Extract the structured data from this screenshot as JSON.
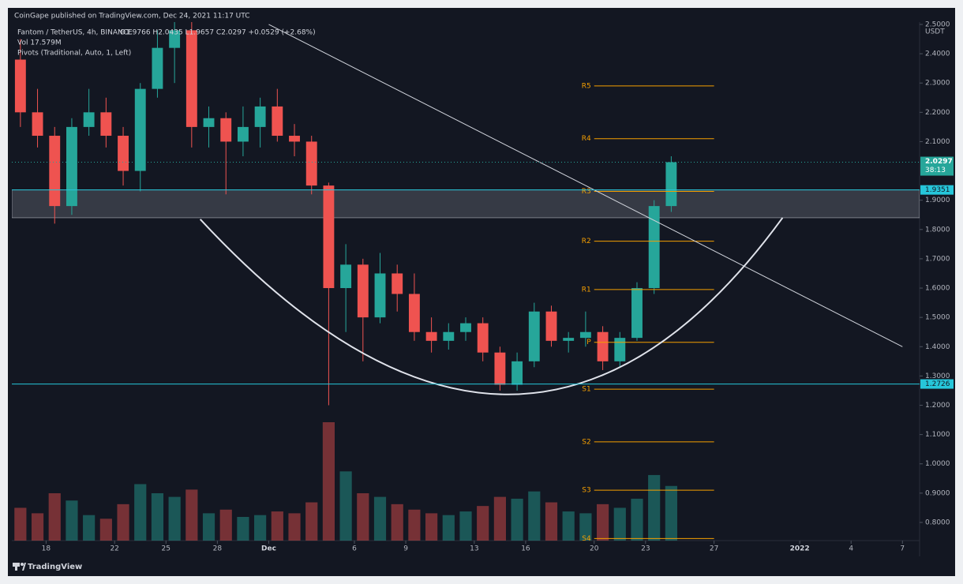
{
  "header": "CoinGape published on TradingView.com, Dec 24, 2021 11:17 UTC",
  "footer": "TradingView",
  "chart_data": {
    "type": "candlestick",
    "legend": {
      "symbol": "Fantom / TetherUS, 4h, BINANCE",
      "ohlc": "O1.9766 H2.0435 L1.9657 C2.0297 +0.0529 (+2.68%)",
      "volume": "Vol 17.579M",
      "pivots": "Pivots (Traditional, Auto, 1, Left)"
    },
    "currency": "USDT",
    "x": [
      "2021-11-16",
      "2021-11-17",
      "2021-11-18",
      "2021-11-19",
      "2021-11-20",
      "2021-11-21",
      "2021-11-22",
      "2021-11-23",
      "2021-11-24",
      "2021-11-25",
      "2021-11-26",
      "2021-11-27",
      "2021-11-28",
      "2021-11-29",
      "2021-11-30",
      "2021-12-01",
      "2021-12-02",
      "2021-12-03",
      "2021-12-04",
      "2021-12-05",
      "2021-12-06",
      "2021-12-07",
      "2021-12-08",
      "2021-12-09",
      "2021-12-10",
      "2021-12-11",
      "2021-12-12",
      "2021-12-13",
      "2021-12-14",
      "2021-12-15",
      "2021-12-16",
      "2021-12-17",
      "2021-12-18",
      "2021-12-19",
      "2021-12-20",
      "2021-12-21",
      "2021-12-22",
      "2021-12-23",
      "2021-12-24"
    ],
    "open": [
      2.38,
      2.2,
      2.12,
      1.88,
      2.15,
      2.2,
      2.12,
      2.0,
      2.28,
      2.42,
      2.48,
      2.15,
      2.18,
      2.1,
      2.15,
      2.22,
      2.12,
      2.1,
      1.95,
      1.6,
      1.68,
      1.5,
      1.65,
      1.58,
      1.45,
      1.42,
      1.45,
      1.48,
      1.38,
      1.27,
      1.35,
      1.52,
      1.42,
      1.43,
      1.45,
      1.35,
      1.43,
      1.6,
      1.88
    ],
    "high": [
      2.45,
      2.28,
      2.15,
      2.18,
      2.28,
      2.25,
      2.15,
      2.3,
      2.48,
      2.55,
      2.52,
      2.22,
      2.2,
      2.22,
      2.25,
      2.28,
      2.16,
      2.12,
      1.96,
      1.75,
      1.7,
      1.72,
      1.68,
      1.65,
      1.5,
      1.48,
      1.5,
      1.5,
      1.4,
      1.38,
      1.55,
      1.54,
      1.45,
      1.52,
      1.47,
      1.45,
      1.62,
      1.9,
      2.05
    ],
    "low": [
      2.15,
      2.08,
      1.82,
      1.85,
      2.12,
      2.08,
      1.95,
      1.93,
      2.25,
      2.3,
      2.08,
      2.08,
      1.92,
      2.05,
      2.08,
      2.1,
      2.05,
      1.92,
      1.2,
      1.45,
      1.35,
      1.48,
      1.52,
      1.42,
      1.38,
      1.39,
      1.42,
      1.35,
      1.25,
      1.25,
      1.33,
      1.4,
      1.38,
      1.4,
      1.32,
      1.33,
      1.42,
      1.58,
      1.86
    ],
    "close": [
      2.2,
      2.12,
      1.88,
      2.15,
      2.2,
      2.12,
      2.0,
      2.28,
      2.42,
      2.48,
      2.15,
      2.18,
      2.1,
      2.15,
      2.22,
      2.12,
      2.1,
      1.95,
      1.6,
      1.68,
      1.5,
      1.65,
      1.58,
      1.45,
      1.42,
      1.45,
      1.48,
      1.38,
      1.27,
      1.35,
      1.52,
      1.42,
      1.43,
      1.45,
      1.35,
      1.43,
      1.6,
      1.88,
      2.0297
    ],
    "volume": [
      180,
      150,
      260,
      220,
      140,
      120,
      200,
      310,
      260,
      240,
      280,
      150,
      170,
      130,
      140,
      160,
      150,
      210,
      650,
      380,
      260,
      240,
      200,
      170,
      150,
      140,
      160,
      190,
      240,
      230,
      270,
      210,
      160,
      150,
      200,
      180,
      230,
      360,
      300
    ],
    "up_color": "#26a69a",
    "down_color": "#ef5350",
    "ylim": [
      0.738,
      2.508
    ],
    "yticks": [
      {
        "value": 2.5,
        "label": "2.5000"
      },
      {
        "value": 2.4,
        "label": "2.4000"
      },
      {
        "value": 2.3,
        "label": "2.3000"
      },
      {
        "value": 2.2,
        "label": "2.2000"
      },
      {
        "value": 2.1,
        "label": "2.1000"
      },
      {
        "value": 1.9,
        "label": "1.9000"
      },
      {
        "value": 1.8,
        "label": "1.8000"
      },
      {
        "value": 1.7,
        "label": "1.7000"
      },
      {
        "value": 1.6,
        "label": "1.6000"
      },
      {
        "value": 1.5,
        "label": "1.5000"
      },
      {
        "value": 1.4,
        "label": "1.4000"
      },
      {
        "value": 1.3,
        "label": "1.3000"
      },
      {
        "value": 1.2,
        "label": "1.2000"
      },
      {
        "value": 1.1,
        "label": "1.1000"
      },
      {
        "value": 1.0,
        "label": "1.0000"
      },
      {
        "value": 0.9,
        "label": "0.9000"
      },
      {
        "value": 0.8,
        "label": "0.8000"
      }
    ],
    "xlim": [
      "2021-11-16",
      "2022-01-08"
    ],
    "xticks": [
      {
        "value": "2021-11-18",
        "label": "18"
      },
      {
        "value": "2021-11-22",
        "label": "22"
      },
      {
        "value": "2021-11-25",
        "label": "25"
      },
      {
        "value": "2021-11-28",
        "label": "28"
      },
      {
        "value": "2021-12-01",
        "label": "Dec"
      },
      {
        "value": "2021-12-06",
        "label": "6"
      },
      {
        "value": "2021-12-09",
        "label": "9"
      },
      {
        "value": "2021-12-13",
        "label": "13"
      },
      {
        "value": "2021-12-16",
        "label": "16"
      },
      {
        "value": "2021-12-20",
        "label": "20"
      },
      {
        "value": "2021-12-23",
        "label": "23"
      },
      {
        "value": "2021-12-27",
        "label": "27"
      },
      {
        "value": "2022-01-01",
        "label": "2022"
      },
      {
        "value": "2022-01-04",
        "label": "4"
      },
      {
        "value": "2022-01-07",
        "label": "7"
      }
    ],
    "price_lines": [
      {
        "value": 1.9351,
        "color": "#26c6da"
      },
      {
        "value": 1.2726,
        "color": "#26c6da"
      }
    ],
    "zone": [
      1.84,
      1.9351
    ],
    "last_price": 2.0297,
    "countdown": "38:13",
    "pivot_color": "#f59f00",
    "pivot_range": [
      "2021-12-20",
      "2021-12-27"
    ],
    "pivots": [
      {
        "name": "R5",
        "value": 2.29
      },
      {
        "name": "R4",
        "value": 2.11
      },
      {
        "name": "R3",
        "value": 1.93
      },
      {
        "name": "R2",
        "value": 1.76
      },
      {
        "name": "R1",
        "value": 1.595
      },
      {
        "name": "P",
        "value": 1.415
      },
      {
        "name": "S1",
        "value": 1.255
      },
      {
        "name": "S2",
        "value": 1.075
      },
      {
        "name": "S3",
        "value": 0.91
      },
      {
        "name": "S4",
        "value": 0.745
      }
    ],
    "trendline": {
      "x": [
        "2021-12-01",
        "2022-01-07"
      ],
      "values": [
        2.5,
        1.4
      ]
    },
    "cup": {
      "x": [
        "2021-11-27",
        "2021-12-15",
        "2021-12-31"
      ],
      "values": [
        1.835,
        1.237,
        1.84
      ]
    }
  }
}
